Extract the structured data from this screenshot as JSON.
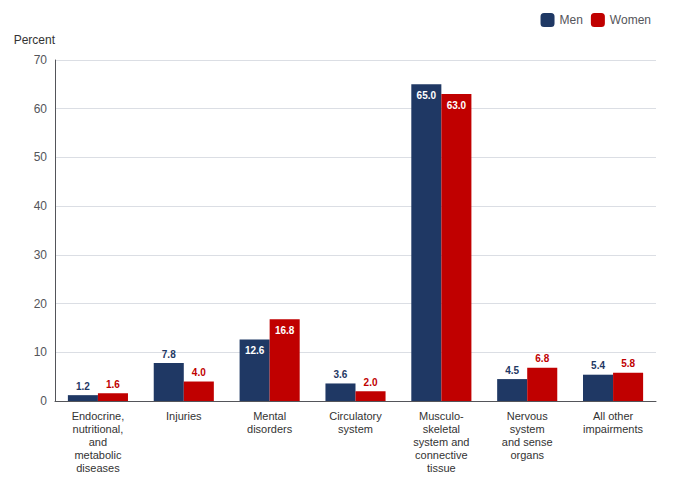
{
  "chart_data": {
    "type": "bar",
    "categories": [
      "Endocrine,\nnutritional,\nand\nmetabolic\ndiseases",
      "Injuries",
      "Mental\ndisorders",
      "Circulatory\nsystem",
      "Musculo-\nskeletal\nsystem and\nconnective\ntissue",
      "Nervous\nsystem\nand sense\norgans",
      "All other\nimpairments"
    ],
    "series": [
      {
        "name": "Men",
        "color": "#1f3864",
        "values": [
          1.2,
          7.8,
          12.6,
          3.6,
          65.0,
          4.5,
          5.4
        ],
        "value_labels": [
          "1.2",
          "7.8",
          "12.6",
          "3.6",
          "65.0",
          "4.5",
          "5.4"
        ]
      },
      {
        "name": "Women",
        "color": "#c00000",
        "values": [
          1.6,
          4.0,
          16.8,
          2.0,
          63.0,
          6.8,
          5.8
        ],
        "value_labels": [
          "1.6",
          "4.0",
          "16.8",
          "2.0",
          "63.0",
          "6.8",
          "5.8"
        ]
      }
    ],
    "ylabel": "Percent",
    "ylim": [
      0,
      70
    ],
    "yticks": [
      0,
      10,
      20,
      30,
      40,
      50,
      60,
      70
    ],
    "grid": true,
    "legend": "upper right",
    "data_labels": true
  }
}
